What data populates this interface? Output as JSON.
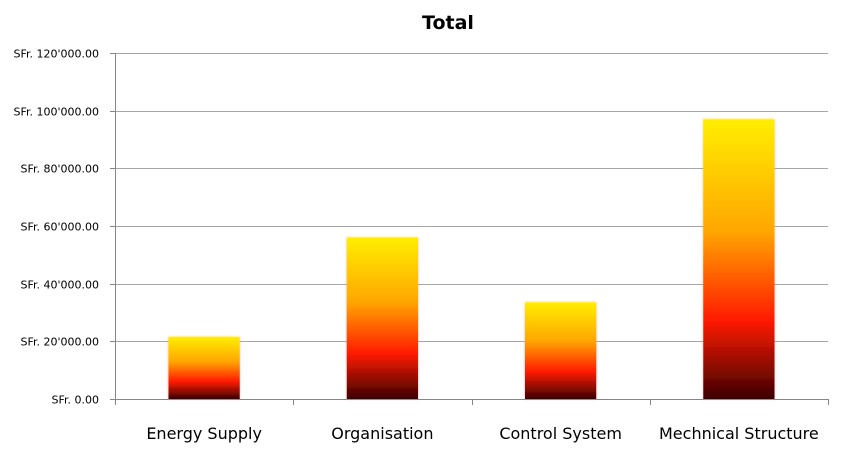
{
  "chart_data": {
    "type": "bar",
    "title": "Total",
    "xlabel": "",
    "ylabel": "",
    "categories": [
      "Energy Supply",
      "Organisation",
      "Control System",
      "Mechnical Structure"
    ],
    "values": [
      21500,
      56000,
      33500,
      97000
    ],
    "ylim": [
      0,
      120000
    ],
    "y_ticks": [
      0,
      20000,
      40000,
      60000,
      80000,
      100000,
      120000
    ],
    "y_tick_labels": [
      "SFr. 0.00",
      "SFr. 20'000.00",
      "SFr. 40'000.00",
      "SFr. 60'000.00",
      "SFr. 80'000.00",
      "SFr. 100'000.00",
      "SFr. 120'000.00"
    ],
    "grid": true,
    "legend": "none",
    "bar_gradient": {
      "top": "#ffee00",
      "mid_upper": "#ffa600",
      "mid": "#ff1a00",
      "bottom": "#3d0000"
    },
    "gridline_color": "#a6a6a6",
    "axis_color": "#868686"
  }
}
